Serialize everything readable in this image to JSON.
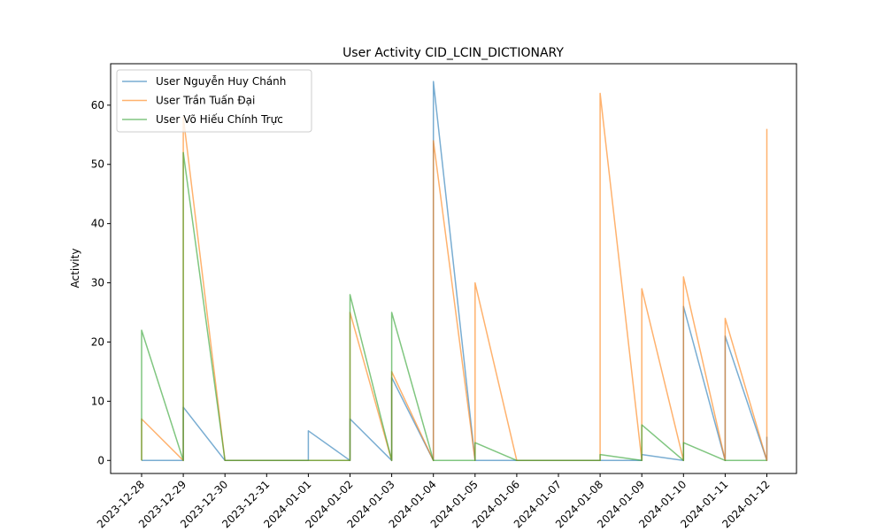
{
  "chart_data": {
    "type": "line",
    "title": "User Activity CID_LCIN_DICTIONARY",
    "xlabel": "",
    "ylabel": "Activity",
    "ylim": [
      -2.2,
      67
    ],
    "yticks": [
      0,
      10,
      20,
      30,
      40,
      50,
      60
    ],
    "xticks": [
      "2023-12-28",
      "2023-12-29",
      "2023-12-30",
      "2023-12-31",
      "2024-01-01",
      "2024-01-02",
      "2024-01-03",
      "2024-01-04",
      "2024-01-05",
      "2024-01-06",
      "2024-01-07",
      "2024-01-08",
      "2024-01-09",
      "2024-01-10",
      "2024-01-11",
      "2024-01-12"
    ],
    "legend_position": "upper-left",
    "grid": false,
    "series": [
      {
        "name": "User Nguyễn Huy Chánh",
        "color": "#1f77b4",
        "points": [
          [
            "2023-12-28",
            0
          ],
          [
            "2023-12-28",
            0
          ],
          [
            "2023-12-29",
            0
          ],
          [
            "2023-12-29",
            9
          ],
          [
            "2023-12-30",
            0
          ],
          [
            "2023-12-30",
            0
          ],
          [
            "2024-01-01",
            0
          ],
          [
            "2024-01-01",
            5
          ],
          [
            "2024-01-02",
            0
          ],
          [
            "2024-01-02",
            7
          ],
          [
            "2024-01-03",
            0
          ],
          [
            "2024-01-03",
            14
          ],
          [
            "2024-01-04",
            0
          ],
          [
            "2024-01-04",
            64
          ],
          [
            "2024-01-05",
            0
          ],
          [
            "2024-01-05",
            0
          ],
          [
            "2024-01-06",
            0
          ],
          [
            "2024-01-06",
            0
          ],
          [
            "2024-01-08",
            0
          ],
          [
            "2024-01-08",
            0
          ],
          [
            "2024-01-09",
            0
          ],
          [
            "2024-01-09",
            1
          ],
          [
            "2024-01-10",
            0
          ],
          [
            "2024-01-10",
            26
          ],
          [
            "2024-01-11",
            0
          ],
          [
            "2024-01-11",
            21
          ],
          [
            "2024-01-12",
            0
          ],
          [
            "2024-01-12",
            4
          ]
        ]
      },
      {
        "name": "User Trần Tuấn Đại",
        "color": "#ff7f0e",
        "points": [
          [
            "2023-12-28",
            0
          ],
          [
            "2023-12-28",
            7
          ],
          [
            "2023-12-29",
            0
          ],
          [
            "2023-12-29",
            58
          ],
          [
            "2023-12-30",
            0
          ],
          [
            "2023-12-30",
            0
          ],
          [
            "2024-01-02",
            0
          ],
          [
            "2024-01-02",
            25
          ],
          [
            "2024-01-03",
            0
          ],
          [
            "2024-01-03",
            15
          ],
          [
            "2024-01-04",
            0
          ],
          [
            "2024-01-04",
            54
          ],
          [
            "2024-01-05",
            0
          ],
          [
            "2024-01-05",
            30
          ],
          [
            "2024-01-06",
            0
          ],
          [
            "2024-01-06",
            0
          ],
          [
            "2024-01-08",
            0
          ],
          [
            "2024-01-08",
            62
          ],
          [
            "2024-01-09",
            0
          ],
          [
            "2024-01-09",
            29
          ],
          [
            "2024-01-10",
            0
          ],
          [
            "2024-01-10",
            31
          ],
          [
            "2024-01-11",
            0
          ],
          [
            "2024-01-11",
            24
          ],
          [
            "2024-01-12",
            0
          ],
          [
            "2024-01-12",
            56
          ]
        ]
      },
      {
        "name": "User Võ Hiếu Chính Trực",
        "color": "#2ca02c",
        "points": [
          [
            "2023-12-28",
            0
          ],
          [
            "2023-12-28",
            22
          ],
          [
            "2023-12-29",
            0
          ],
          [
            "2023-12-29",
            52
          ],
          [
            "2023-12-30",
            0
          ],
          [
            "2023-12-30",
            0
          ],
          [
            "2024-01-02",
            0
          ],
          [
            "2024-01-02",
            28
          ],
          [
            "2024-01-03",
            0
          ],
          [
            "2024-01-03",
            25
          ],
          [
            "2024-01-04",
            0
          ],
          [
            "2024-01-04",
            0
          ],
          [
            "2024-01-05",
            0
          ],
          [
            "2024-01-05",
            3
          ],
          [
            "2024-01-06",
            0
          ],
          [
            "2024-01-06",
            0
          ],
          [
            "2024-01-08",
            0
          ],
          [
            "2024-01-08",
            1
          ],
          [
            "2024-01-09",
            0
          ],
          [
            "2024-01-09",
            6
          ],
          [
            "2024-01-10",
            0
          ],
          [
            "2024-01-10",
            3
          ],
          [
            "2024-01-11",
            0
          ],
          [
            "2024-01-11",
            0
          ],
          [
            "2024-01-12",
            0
          ]
        ]
      }
    ]
  }
}
